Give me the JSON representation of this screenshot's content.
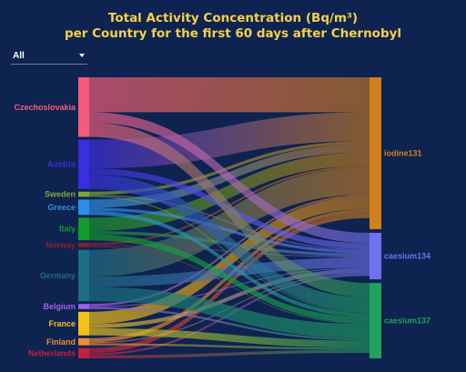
{
  "title": {
    "line1": "Total Activity Concentration (Bq/m³)",
    "line2": "per Country for the first 60 days after Chernobyl"
  },
  "filter": {
    "value": "All",
    "icon": "chevron-down-icon"
  },
  "chart_data": {
    "type": "sankey",
    "sources": [
      {
        "name": "Czechoslovakia",
        "color": "#f45c7c"
      },
      {
        "name": "Austria",
        "color": "#3a2ee0"
      },
      {
        "name": "Sweden",
        "color": "#7fa83c"
      },
      {
        "name": "Greece",
        "color": "#2b8fe6"
      },
      {
        "name": "Italy",
        "color": "#139a2c"
      },
      {
        "name": "Norway",
        "color": "#8b1f2e"
      },
      {
        "name": "Germany",
        "color": "#1c6d85"
      },
      {
        "name": "Belgium",
        "color": "#a060e8"
      },
      {
        "name": "France",
        "color": "#f2c21a"
      },
      {
        "name": "Finland",
        "color": "#f08a3a"
      },
      {
        "name": "Netherlands",
        "color": "#c2213f"
      }
    ],
    "targets": [
      {
        "name": "iodine131",
        "color": "#d27f1e"
      },
      {
        "name": "caesium134",
        "color": "#6f72f0"
      },
      {
        "name": "caesium137",
        "color": "#1fa35c"
      }
    ],
    "links": [
      {
        "source": "Czechoslovakia",
        "target": "iodine131",
        "value": 34
      },
      {
        "source": "Czechoslovakia",
        "target": "caesium134",
        "value": 10
      },
      {
        "source": "Czechoslovakia",
        "target": "caesium137",
        "value": 14
      },
      {
        "source": "Austria",
        "target": "iodine131",
        "value": 28
      },
      {
        "source": "Austria",
        "target": "caesium134",
        "value": 6
      },
      {
        "source": "Austria",
        "target": "caesium137",
        "value": 14
      },
      {
        "source": "Sweden",
        "target": "iodine131",
        "value": 3
      },
      {
        "source": "Sweden",
        "target": "caesium134",
        "value": 1
      },
      {
        "source": "Sweden",
        "target": "caesium137",
        "value": 1
      },
      {
        "source": "Greece",
        "target": "iodine131",
        "value": 8
      },
      {
        "source": "Greece",
        "target": "caesium134",
        "value": 3
      },
      {
        "source": "Greece",
        "target": "caesium137",
        "value": 4
      },
      {
        "source": "Italy",
        "target": "iodine131",
        "value": 13
      },
      {
        "source": "Italy",
        "target": "caesium134",
        "value": 3
      },
      {
        "source": "Italy",
        "target": "caesium137",
        "value": 6
      },
      {
        "source": "Norway",
        "target": "iodine131",
        "value": 2
      },
      {
        "source": "Norway",
        "target": "caesium134",
        "value": 1
      },
      {
        "source": "Norway",
        "target": "caesium137",
        "value": 1
      },
      {
        "source": "Germany",
        "target": "iodine131",
        "value": 26
      },
      {
        "source": "Germany",
        "target": "caesium134",
        "value": 10
      },
      {
        "source": "Germany",
        "target": "caesium137",
        "value": 14
      },
      {
        "source": "Belgium",
        "target": "iodine131",
        "value": 2
      },
      {
        "source": "Belgium",
        "target": "caesium134",
        "value": 1
      },
      {
        "source": "Belgium",
        "target": "caesium137",
        "value": 2
      },
      {
        "source": "France",
        "target": "iodine131",
        "value": 12
      },
      {
        "source": "France",
        "target": "caesium134",
        "value": 4
      },
      {
        "source": "France",
        "target": "caesium137",
        "value": 7
      },
      {
        "source": "Finland",
        "target": "iodine131",
        "value": 4
      },
      {
        "source": "Finland",
        "target": "caesium134",
        "value": 1
      },
      {
        "source": "Finland",
        "target": "caesium137",
        "value": 2
      },
      {
        "source": "Netherlands",
        "target": "iodine131",
        "value": 5
      },
      {
        "source": "Netherlands",
        "target": "caesium134",
        "value": 2
      },
      {
        "source": "Netherlands",
        "target": "caesium137",
        "value": 3
      }
    ]
  }
}
